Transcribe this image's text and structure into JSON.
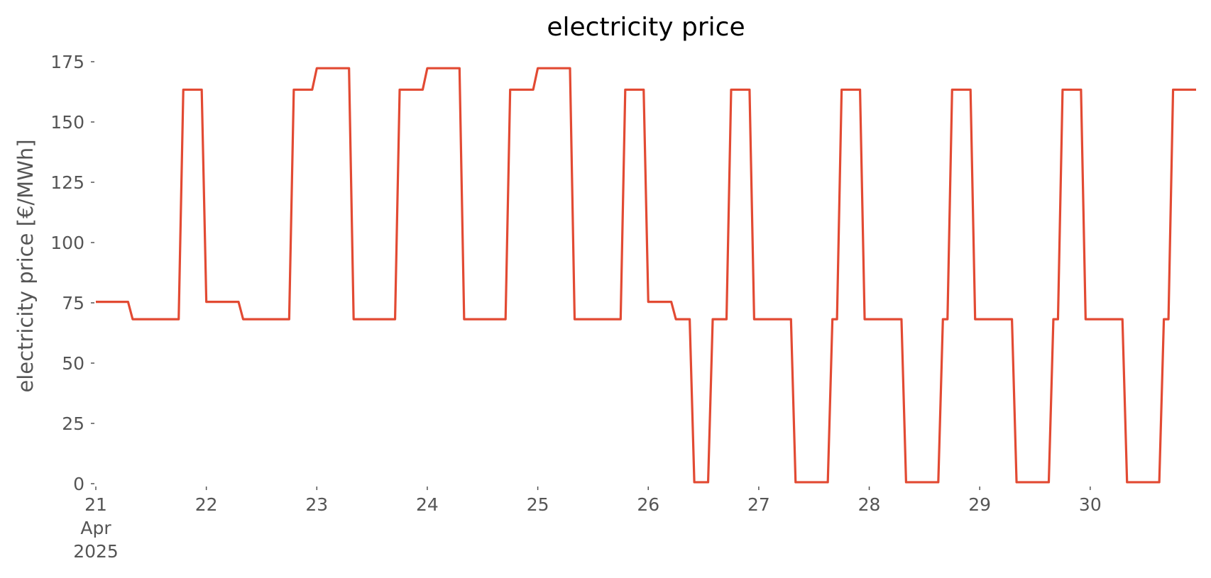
{
  "chart_data": {
    "type": "line",
    "title": "electricity price",
    "y_label": "electricity price [€/MWh]",
    "x": [
      0,
      1,
      2,
      3,
      4,
      5,
      6,
      7,
      8,
      9,
      10,
      11,
      12,
      13,
      14,
      15,
      16,
      17,
      18,
      19,
      20,
      21,
      22,
      23,
      24,
      25,
      26,
      27,
      28,
      29,
      30,
      31,
      32,
      33,
      34,
      35,
      36,
      37,
      38,
      39,
      40,
      41,
      42,
      43,
      44,
      45,
      46,
      47,
      48,
      49,
      50,
      51,
      52,
      53,
      54,
      55,
      56,
      57,
      58,
      59,
      60,
      61,
      62,
      63,
      64,
      65,
      66,
      67,
      68,
      69,
      70,
      71,
      72,
      73,
      74,
      75,
      76,
      77,
      78,
      79,
      80,
      81,
      82,
      83,
      84,
      85,
      86,
      87,
      88,
      89,
      90,
      91,
      92,
      93,
      94,
      95,
      96,
      97,
      98,
      99,
      100,
      101,
      102,
      103,
      104,
      105,
      106,
      107,
      108,
      109,
      110,
      111,
      112,
      113,
      114,
      115,
      116,
      117,
      118,
      119,
      120,
      121,
      122,
      123,
      124,
      125,
      126,
      127,
      128,
      129,
      130,
      131,
      132,
      133,
      134,
      135,
      136,
      137,
      138,
      139,
      140,
      141,
      142,
      143,
      144,
      145,
      146,
      147,
      148,
      149,
      150,
      151,
      152,
      153,
      154,
      155,
      156,
      157,
      158,
      159,
      160,
      161,
      162,
      163,
      164,
      165,
      166,
      167,
      168,
      169,
      170,
      171,
      172,
      173,
      174,
      175,
      176,
      177,
      178,
      179,
      180,
      181,
      182,
      183,
      184,
      185,
      186,
      187,
      188,
      189,
      190,
      191,
      192,
      193,
      194,
      195,
      196,
      197,
      198,
      199,
      200,
      201,
      202,
      203,
      204,
      205,
      206,
      207,
      208,
      209,
      210,
      211,
      212,
      213,
      214,
      215,
      216,
      217,
      218,
      219,
      220,
      221,
      222,
      223,
      224,
      225,
      226,
      227,
      228,
      229,
      230,
      231,
      232,
      233,
      234,
      235,
      236,
      237,
      238,
      239
    ],
    "series": [
      {
        "name": "electricity price",
        "color": "#e24a33",
        "values": [
          75.4,
          75.4,
          75.4,
          75.4,
          75.4,
          75.4,
          75.4,
          75.4,
          68.2,
          68.2,
          68.2,
          68.2,
          68.2,
          68.2,
          68.2,
          68.2,
          68.2,
          68.2,
          68.2,
          163.4,
          163.4,
          163.4,
          163.4,
          163.4,
          75.4,
          75.4,
          75.4,
          75.4,
          75.4,
          75.4,
          75.4,
          75.4,
          68.2,
          68.2,
          68.2,
          68.2,
          68.2,
          68.2,
          68.2,
          68.2,
          68.2,
          68.2,
          68.2,
          163.4,
          163.4,
          163.4,
          163.4,
          163.4,
          172.3,
          172.3,
          172.3,
          172.3,
          172.3,
          172.3,
          172.3,
          172.3,
          68.2,
          68.2,
          68.2,
          68.2,
          68.2,
          68.2,
          68.2,
          68.2,
          68.2,
          68.2,
          163.4,
          163.4,
          163.4,
          163.4,
          163.4,
          163.4,
          172.3,
          172.3,
          172.3,
          172.3,
          172.3,
          172.3,
          172.3,
          172.3,
          68.2,
          68.2,
          68.2,
          68.2,
          68.2,
          68.2,
          68.2,
          68.2,
          68.2,
          68.2,
          163.4,
          163.4,
          163.4,
          163.4,
          163.4,
          163.4,
          172.3,
          172.3,
          172.3,
          172.3,
          172.3,
          172.3,
          172.3,
          172.3,
          68.2,
          68.2,
          68.2,
          68.2,
          68.2,
          68.2,
          68.2,
          68.2,
          68.2,
          68.2,
          68.2,
          163.4,
          163.4,
          163.4,
          163.4,
          163.4,
          75.4,
          75.4,
          75.4,
          75.4,
          75.4,
          75.4,
          68.2,
          68.2,
          68.2,
          68.2,
          0.6,
          0.6,
          0.6,
          0.6,
          68.2,
          68.2,
          68.2,
          68.2,
          163.4,
          163.4,
          163.4,
          163.4,
          163.4,
          68.2,
          68.2,
          68.2,
          68.2,
          68.2,
          68.2,
          68.2,
          68.2,
          68.2,
          0.6,
          0.6,
          0.6,
          0.6,
          0.6,
          0.6,
          0.6,
          0.6,
          68.2,
          68.2,
          163.4,
          163.4,
          163.4,
          163.4,
          163.4,
          68.2,
          68.2,
          68.2,
          68.2,
          68.2,
          68.2,
          68.2,
          68.2,
          68.2,
          0.6,
          0.6,
          0.6,
          0.6,
          0.6,
          0.6,
          0.6,
          0.6,
          68.2,
          68.2,
          163.4,
          163.4,
          163.4,
          163.4,
          163.4,
          68.2,
          68.2,
          68.2,
          68.2,
          68.2,
          68.2,
          68.2,
          68.2,
          68.2,
          0.6,
          0.6,
          0.6,
          0.6,
          0.6,
          0.6,
          0.6,
          0.6,
          68.2,
          68.2,
          163.4,
          163.4,
          163.4,
          163.4,
          163.4,
          68.2,
          68.2,
          68.2,
          68.2,
          68.2,
          68.2,
          68.2,
          68.2,
          68.2,
          0.6,
          0.6,
          0.6,
          0.6,
          0.6,
          0.6,
          0.6,
          0.6,
          68.2,
          68.2,
          163.4,
          163.4,
          163.4,
          163.4,
          163.4,
          163.4
        ]
      }
    ],
    "xlim": [
      0,
      239
    ],
    "xticks": [
      {
        "value": 0,
        "label": "21\nApr\n2025"
      },
      {
        "value": 24,
        "label": "22"
      },
      {
        "value": 48,
        "label": "23"
      },
      {
        "value": 72,
        "label": "24"
      },
      {
        "value": 96,
        "label": "25"
      },
      {
        "value": 120,
        "label": "26"
      },
      {
        "value": 144,
        "label": "27"
      },
      {
        "value": 168,
        "label": "28"
      },
      {
        "value": 192,
        "label": "29"
      },
      {
        "value": 216,
        "label": "30"
      }
    ],
    "ylim": [
      0,
      175
    ],
    "yticks": [
      0,
      25,
      50,
      75,
      100,
      125,
      150,
      175
    ],
    "grid": false
  }
}
